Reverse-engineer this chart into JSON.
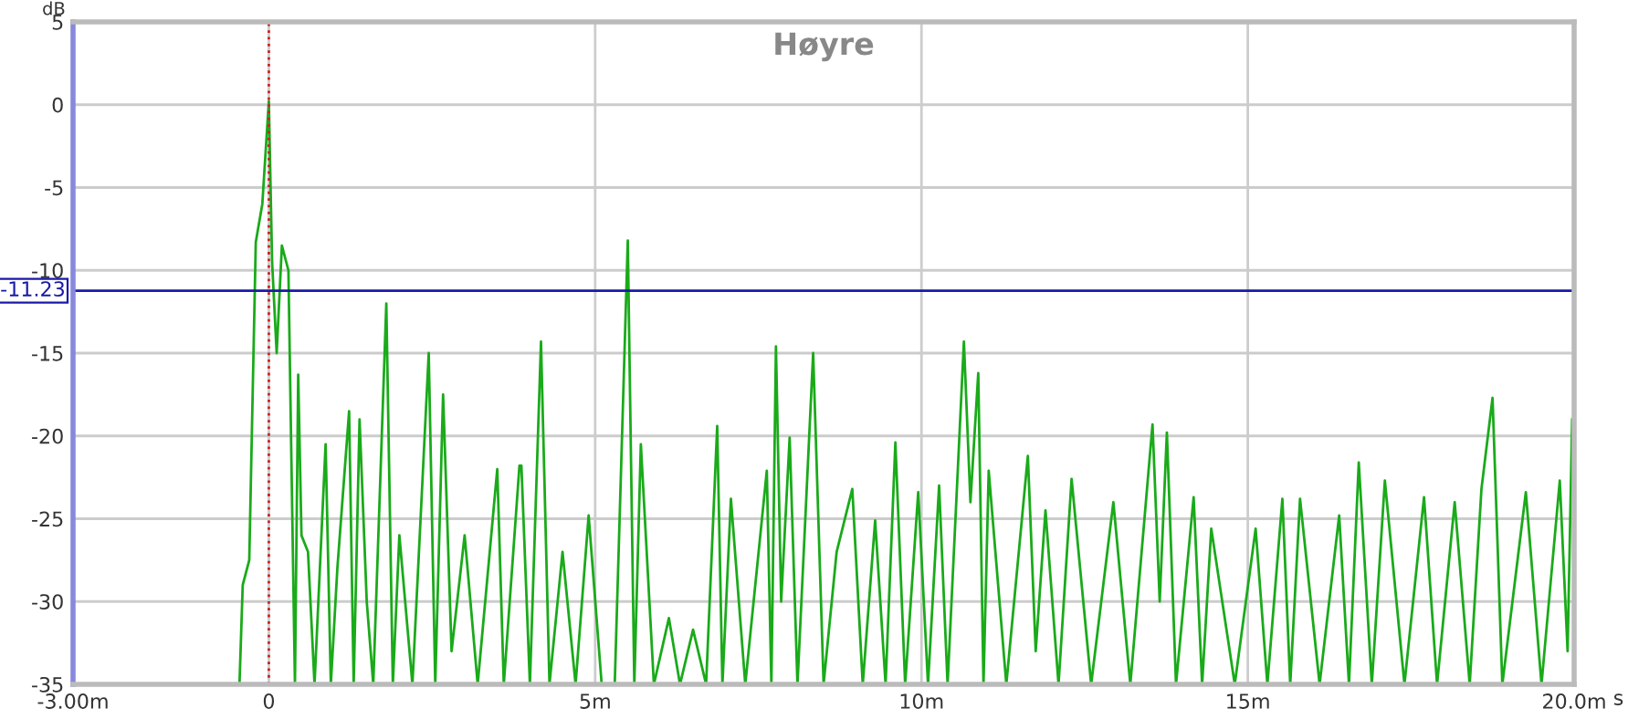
{
  "chart_data": {
    "type": "line",
    "title": "Høyre",
    "ylabel": "dB",
    "xlim": [
      -3,
      20
    ],
    "xticks": [
      {
        "value": -3,
        "label": "-3.00m"
      },
      {
        "value": 0,
        "label": "0"
      },
      {
        "value": 5,
        "label": "5m"
      },
      {
        "value": 10,
        "label": "10m"
      },
      {
        "value": 15,
        "label": "15m"
      },
      {
        "value": 20,
        "label": "20.0m"
      }
    ],
    "xlabel": "s",
    "ylim": [
      -35,
      5
    ],
    "yticks": [
      5,
      0,
      -5,
      -10,
      -15,
      -20,
      -25,
      -30,
      -35
    ],
    "grid": true,
    "marker": "none",
    "line_style": "solid",
    "ref_lines": [
      {
        "axis": "y",
        "value": -11.23,
        "label": "-11.23",
        "color": "#1a1aa8",
        "line_style": "solid"
      },
      {
        "axis": "x",
        "value": 0,
        "color": "#cc2222",
        "line_style": "dotted"
      }
    ],
    "series": [
      {
        "color": "#1aaa1a",
        "x": [
          -0.45,
          -0.4,
          -0.3,
          -0.2,
          -0.1,
          0,
          0.05,
          0.12,
          0.2,
          0.3,
          0.4,
          0.45,
          0.5,
          0.6,
          0.7,
          0.87,
          0.95,
          1.05,
          1.23,
          1.3,
          1.39,
          1.5,
          1.6,
          1.8,
          1.9,
          2.0,
          2.2,
          2.45,
          2.55,
          2.67,
          2.8,
          3.0,
          3.2,
          3.5,
          3.6,
          3.84,
          3.87,
          4.0,
          4.17,
          4.3,
          4.5,
          4.7,
          4.9,
          5.1,
          5.3,
          5.5,
          5.6,
          5.7,
          5.9,
          6.13,
          6.3,
          6.5,
          6.7,
          6.87,
          6.95,
          7.08,
          7.3,
          7.63,
          7.7,
          7.77,
          7.85,
          7.98,
          8.1,
          8.34,
          8.5,
          8.7,
          8.94,
          9.1,
          9.29,
          9.45,
          9.6,
          9.75,
          9.95,
          10.1,
          10.27,
          10.4,
          10.65,
          10.75,
          10.87,
          10.95,
          11.03,
          11.3,
          11.63,
          11.75,
          11.9,
          12.1,
          12.3,
          12.6,
          12.94,
          13.2,
          13.54,
          13.65,
          13.76,
          13.9,
          14.17,
          14.3,
          14.44,
          14.8,
          15.12,
          15.3,
          15.53,
          15.65,
          15.8,
          16.1,
          16.4,
          16.55,
          16.7,
          16.9,
          17.1,
          17.4,
          17.7,
          17.9,
          18.17,
          18.4,
          18.58,
          18.75,
          18.9,
          19.26,
          19.5,
          19.78,
          19.9,
          19.97
        ],
        "values": [
          -35,
          -29,
          -27.5,
          -8.3,
          -6,
          0.2,
          -9.5,
          -15,
          -8.5,
          -10,
          -35,
          -16.3,
          -26,
          -27,
          -35,
          -20.5,
          -35,
          -28,
          -18.5,
          -35,
          -19,
          -30,
          -35,
          -12,
          -35,
          -26,
          -35,
          -15,
          -35,
          -17.5,
          -33,
          -26,
          -35,
          -22,
          -35,
          -21.8,
          -21.8,
          -35,
          -14.3,
          -35,
          -27,
          -35,
          -24.8,
          -35,
          -35,
          -8.2,
          -35,
          -20.5,
          -35,
          -31,
          -35,
          -31.7,
          -35,
          -19.4,
          -35,
          -23.8,
          -35,
          -22.1,
          -35,
          -14.6,
          -30,
          -20.1,
          -35,
          -15,
          -35,
          -27,
          -23.2,
          -35,
          -25.1,
          -35,
          -20.4,
          -35,
          -23.4,
          -35,
          -23,
          -35,
          -14.3,
          -24,
          -16.2,
          -35,
          -22.1,
          -35,
          -21.2,
          -33,
          -24.5,
          -35,
          -22.6,
          -35,
          -24,
          -35,
          -19.3,
          -30,
          -19.8,
          -35,
          -23.7,
          -35,
          -25.6,
          -35,
          -25.6,
          -35,
          -23.8,
          -35,
          -23.8,
          -35,
          -24.8,
          -35,
          -21.6,
          -35,
          -22.7,
          -35,
          -23.7,
          -35,
          -24,
          -35,
          -23.2,
          -17.7,
          -35,
          -23.4,
          -35,
          -22.7,
          -33,
          -19
        ]
      }
    ]
  }
}
